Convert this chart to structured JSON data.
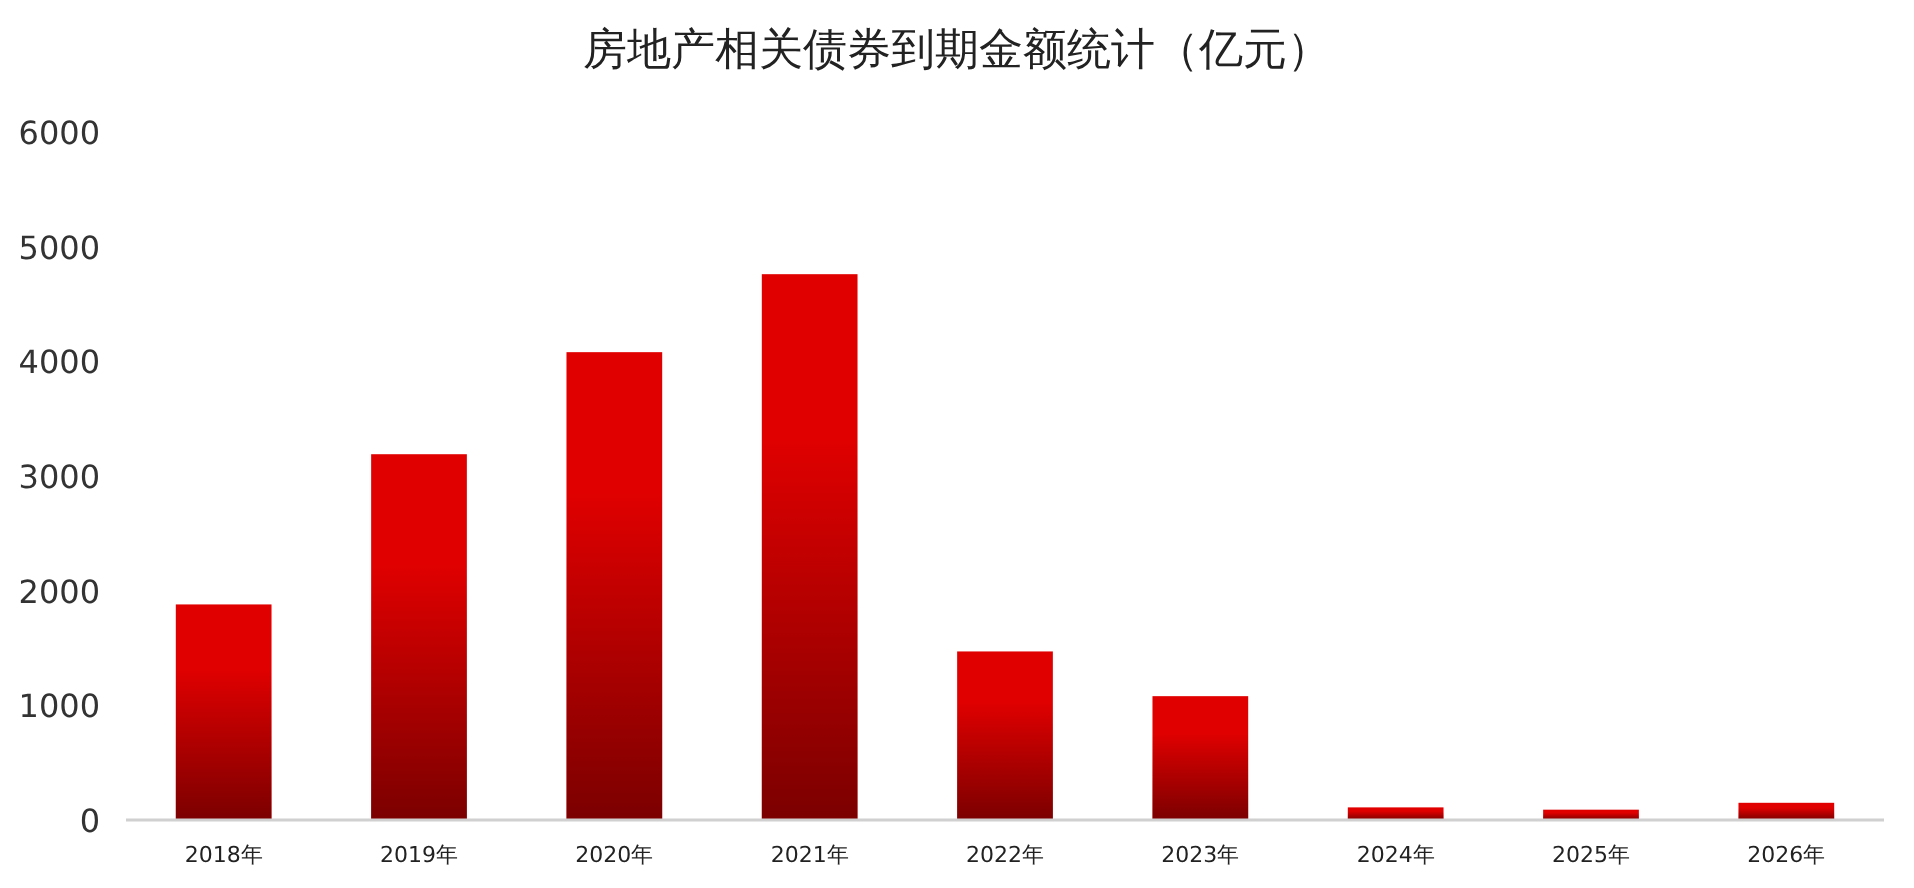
{
  "chart_data": {
    "type": "bar",
    "title": "房地产相关债券到期金额统计（亿元）",
    "categories": [
      "2018年",
      "2019年",
      "2020年",
      "2021年",
      "2022年",
      "2023年",
      "2024年",
      "2025年",
      "2026年"
    ],
    "values": [
      1880,
      3190,
      4080,
      4760,
      1470,
      1080,
      110,
      90,
      150
    ],
    "color": "#e00000",
    "ylim": [
      0,
      6000
    ],
    "yticks": [
      0,
      1000,
      2000,
      3000,
      4000,
      5000,
      6000
    ],
    "grid": false
  }
}
